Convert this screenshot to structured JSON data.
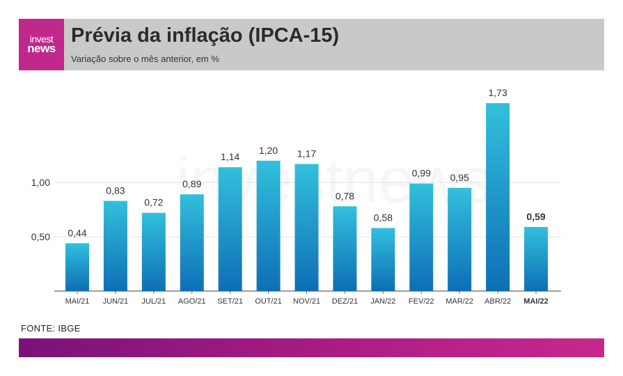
{
  "header": {
    "logo_line1": "invest",
    "logo_line2": "news",
    "title": "Prévia da inflação (IPCA-15)",
    "subtitle": "Variação sobre o mês anterior, em %"
  },
  "chart_data": {
    "type": "bar",
    "categories": [
      "MAI/21",
      "JUN/21",
      "JUL/21",
      "AGO/21",
      "SET/21",
      "OUT/21",
      "NOV/21",
      "DEZ/21",
      "JAN/22",
      "FEV/22",
      "MAR/22",
      "ABR/22",
      "MAI/22"
    ],
    "values": [
      0.44,
      0.83,
      0.72,
      0.89,
      1.14,
      1.2,
      1.17,
      0.78,
      0.58,
      0.99,
      0.95,
      1.73,
      0.59
    ],
    "value_labels": [
      "0,44",
      "0,83",
      "0,72",
      "0,89",
      "1,14",
      "1,20",
      "1,17",
      "0,78",
      "0,58",
      "0,99",
      "0,95",
      "1,73",
      "0,59"
    ],
    "highlight_index": 12,
    "yticks": [
      0.5,
      1.0
    ],
    "ytick_labels": [
      "0,50",
      "1,00"
    ],
    "ylim": [
      0,
      1.85
    ],
    "grid": true,
    "bar_color_top": "#32c0dc",
    "bar_color_bottom": "#0e6eb6",
    "watermark": "investnews"
  },
  "footer": {
    "source": "FONTE: IBGE"
  }
}
